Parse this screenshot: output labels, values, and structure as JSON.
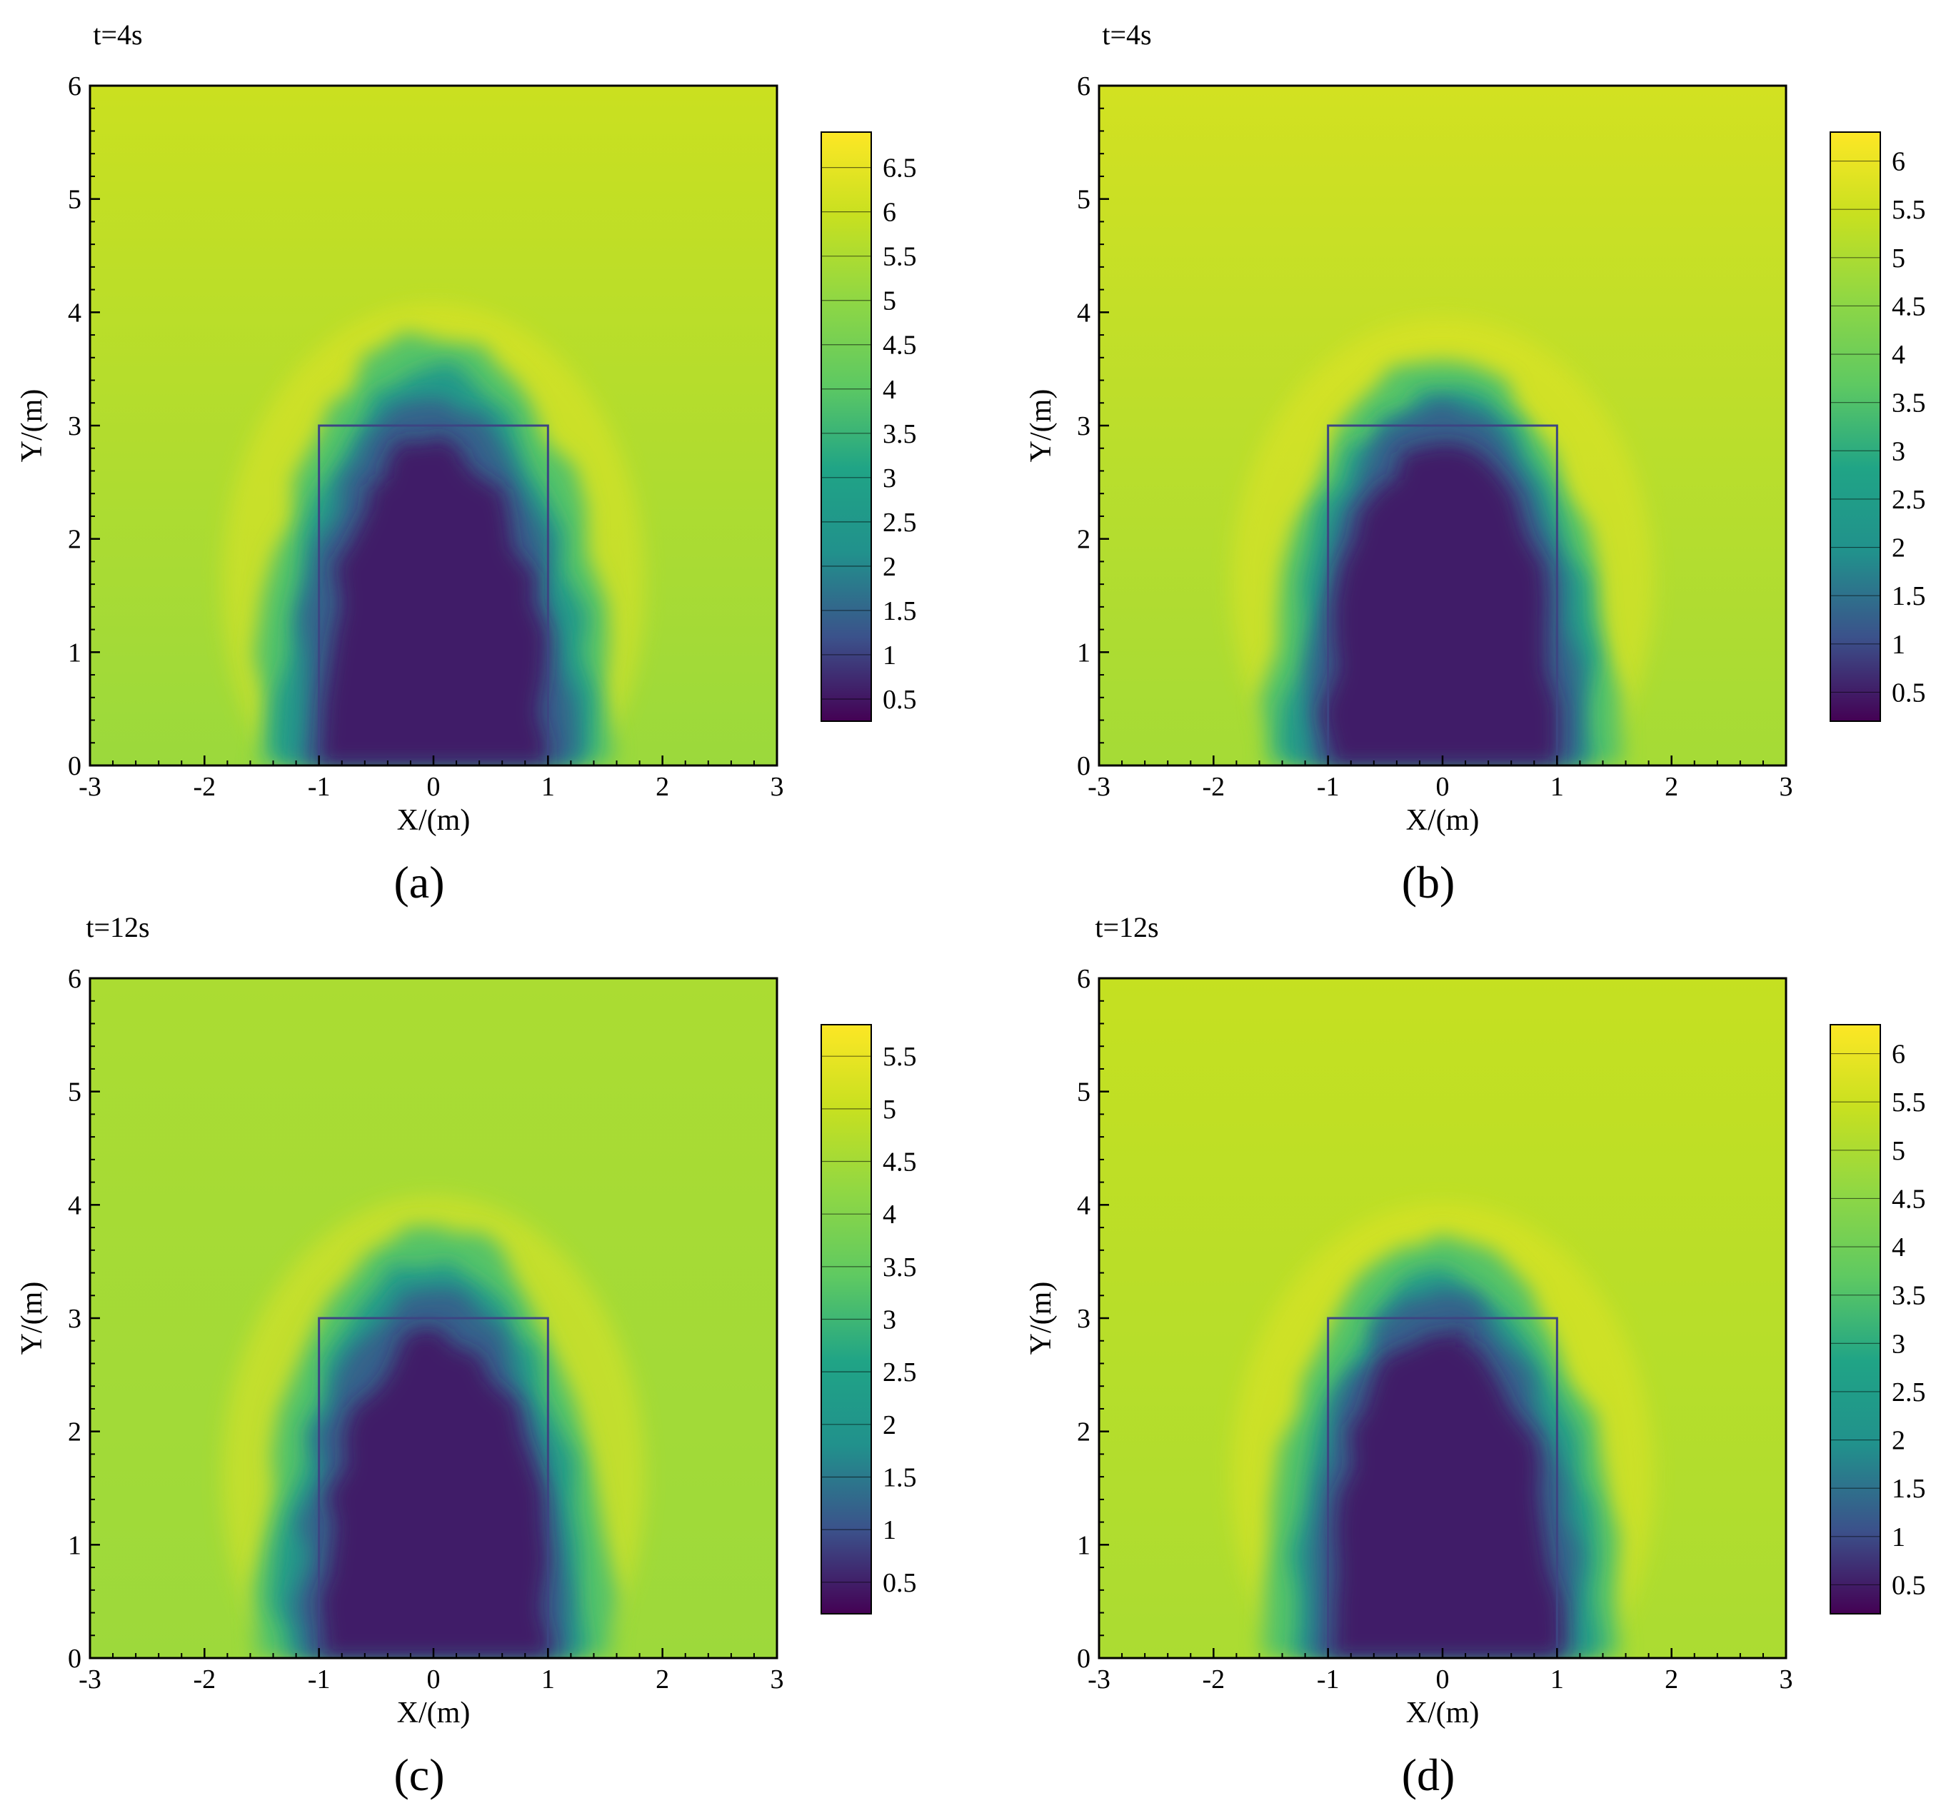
{
  "colormap": [
    "#440154",
    "#3b528b",
    "#21918c",
    "#20a486",
    "#5ec962",
    "#8fd744",
    "#c7e020",
    "#fde725"
  ],
  "chart_data": [
    {
      "type": "heatmap",
      "time_label": "t=4s",
      "panel_label": "(a)",
      "xlabel": "X/(m)",
      "ylabel": "Y/(m)",
      "xlim": [
        -3,
        3
      ],
      "ylim": [
        0,
        6
      ],
      "xticks": [
        "-3",
        "-2",
        "-1",
        "0",
        "1",
        "2",
        "3"
      ],
      "yticks": [
        "0",
        "1",
        "2",
        "3",
        "4",
        "5",
        "6"
      ],
      "colorbar": {
        "min": 0.25,
        "max": 6.9,
        "ticks": [
          "0.5",
          "1",
          "1.5",
          "2",
          "2.5",
          "3",
          "3.5",
          "4",
          "4.5",
          "5",
          "5.5",
          "6",
          "6.5"
        ]
      },
      "field": {
        "ambient": 6.0,
        "ambient_bottom": 5.2,
        "plume_value": 0.5,
        "plume_top": 3.8,
        "structure": {
          "x": [
            -1,
            1
          ],
          "y": [
            0,
            3
          ]
        }
      }
    },
    {
      "type": "heatmap",
      "time_label": "t=4s",
      "panel_label": "(b)",
      "xlabel": "X/(m)",
      "ylabel": "Y/(m)",
      "xlim": [
        -3,
        3
      ],
      "ylim": [
        0,
        6
      ],
      "xticks": [
        "-3",
        "-2",
        "-1",
        "0",
        "1",
        "2",
        "3"
      ],
      "yticks": [
        "0",
        "1",
        "2",
        "3",
        "4",
        "5",
        "6"
      ],
      "colorbar": {
        "min": 0.2,
        "max": 6.3,
        "ticks": [
          "0.5",
          "1",
          "1.5",
          "2",
          "2.5",
          "3",
          "3.5",
          "4",
          "4.5",
          "5",
          "5.5",
          "6"
        ]
      },
      "field": {
        "ambient": 5.6,
        "ambient_bottom": 4.9,
        "plume_value": 0.5,
        "plume_top": 3.6,
        "structure": {
          "x": [
            -1,
            1
          ],
          "y": [
            0,
            3
          ]
        }
      }
    },
    {
      "type": "heatmap",
      "time_label": "t=12s",
      "panel_label": "(c)",
      "xlabel": "X/(m)",
      "ylabel": "Y/(m)",
      "xlim": [
        -3,
        3
      ],
      "ylim": [
        0,
        6
      ],
      "xticks": [
        "-3",
        "-2",
        "-1",
        "0",
        "1",
        "2",
        "3"
      ],
      "yticks": [
        "0",
        "1",
        "2",
        "3",
        "4",
        "5",
        "6"
      ],
      "colorbar": {
        "min": 0.2,
        "max": 5.8,
        "ticks": [
          "0.5",
          "1",
          "1.5",
          "2",
          "2.5",
          "3",
          "3.5",
          "4",
          "4.5",
          "5",
          "5.5"
        ]
      },
      "field": {
        "ambient": 4.6,
        "ambient_bottom": 4.4,
        "plume_value": 0.5,
        "plume_top": 3.8,
        "structure": {
          "x": [
            -1,
            1
          ],
          "y": [
            0,
            3
          ]
        }
      }
    },
    {
      "type": "heatmap",
      "time_label": "t=12s",
      "panel_label": "(d)",
      "xlabel": "X/(m)",
      "ylabel": "Y/(m)",
      "xlim": [
        -3,
        3
      ],
      "ylim": [
        0,
        6
      ],
      "xticks": [
        "-3",
        "-2",
        "-1",
        "0",
        "1",
        "2",
        "3"
      ],
      "yticks": [
        "0",
        "1",
        "2",
        "3",
        "4",
        "5",
        "6"
      ],
      "colorbar": {
        "min": 0.2,
        "max": 6.3,
        "ticks": [
          "0.5",
          "1",
          "1.5",
          "2",
          "2.5",
          "3",
          "3.5",
          "4",
          "4.5",
          "5",
          "5.5",
          "6"
        ]
      },
      "field": {
        "ambient": 5.4,
        "ambient_bottom": 5.0,
        "plume_value": 0.5,
        "plume_top": 3.7,
        "structure": {
          "x": [
            -1,
            1
          ],
          "y": [
            0,
            3
          ]
        }
      }
    }
  ]
}
